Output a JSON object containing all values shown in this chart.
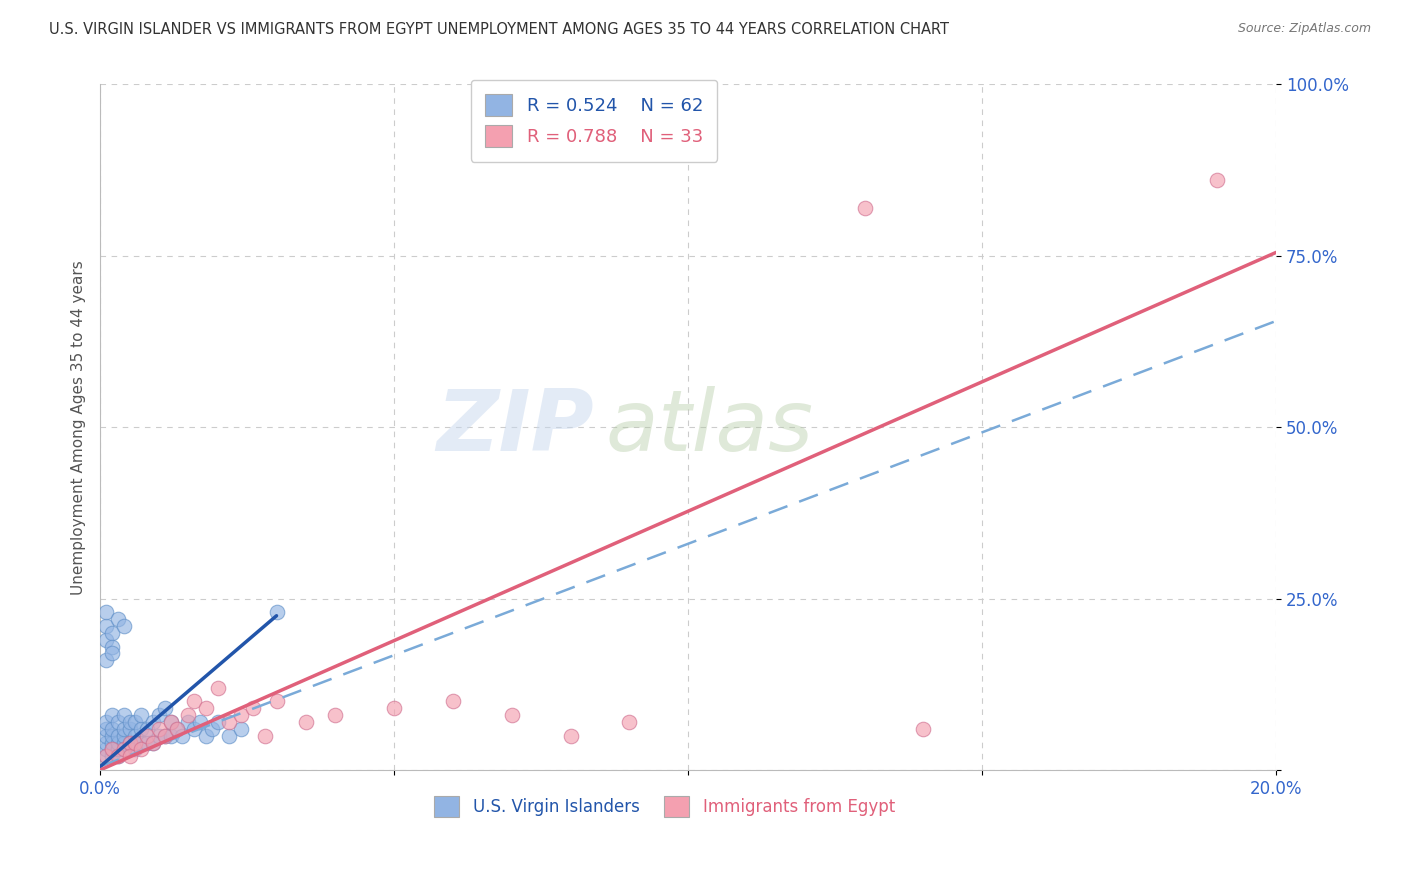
{
  "title": "U.S. VIRGIN ISLANDER VS IMMIGRANTS FROM EGYPT UNEMPLOYMENT AMONG AGES 35 TO 44 YEARS CORRELATION CHART",
  "source": "Source: ZipAtlas.com",
  "xlabel": "",
  "ylabel": "Unemployment Among Ages 35 to 44 years",
  "xlim": [
    0.0,
    0.2
  ],
  "ylim": [
    0.0,
    1.0
  ],
  "xticks": [
    0.0,
    0.05,
    0.1,
    0.15,
    0.2
  ],
  "xtick_labels": [
    "0.0%",
    "",
    "",
    "",
    "20.0%"
  ],
  "yticks": [
    0.0,
    0.25,
    0.5,
    0.75,
    1.0
  ],
  "ytick_labels": [
    "",
    "25.0%",
    "50.0%",
    "75.0%",
    "100.0%"
  ],
  "series1_label": "U.S. Virgin Islanders",
  "series1_color": "#92b4e3",
  "series1_border": "#6090c8",
  "series1_R": 0.524,
  "series1_N": 62,
  "series2_label": "Immigrants from Egypt",
  "series2_color": "#f4a0b0",
  "series2_border": "#d07090",
  "series2_R": 0.788,
  "series2_N": 33,
  "watermark_zip": "ZIP",
  "watermark_atlas": "atlas",
  "blue_trend_x": [
    0.0,
    0.03
  ],
  "blue_trend_y": [
    0.005,
    0.225
  ],
  "dashed_trend_x": [
    0.0,
    0.2
  ],
  "dashed_trend_y": [
    0.005,
    0.655
  ],
  "pink_trend_x": [
    0.0,
    0.2
  ],
  "pink_trend_y": [
    0.0,
    0.755
  ],
  "scatter1_x": [
    0.001,
    0.001,
    0.001,
    0.001,
    0.001,
    0.001,
    0.002,
    0.002,
    0.002,
    0.002,
    0.002,
    0.002,
    0.003,
    0.003,
    0.003,
    0.003,
    0.003,
    0.004,
    0.004,
    0.004,
    0.004,
    0.004,
    0.005,
    0.005,
    0.005,
    0.005,
    0.006,
    0.006,
    0.006,
    0.007,
    0.007,
    0.007,
    0.008,
    0.008,
    0.009,
    0.009,
    0.01,
    0.01,
    0.011,
    0.011,
    0.012,
    0.012,
    0.013,
    0.014,
    0.015,
    0.016,
    0.017,
    0.018,
    0.019,
    0.02,
    0.022,
    0.024,
    0.001,
    0.001,
    0.001,
    0.002,
    0.002,
    0.003,
    0.004,
    0.03,
    0.001,
    0.002
  ],
  "scatter1_y": [
    0.02,
    0.03,
    0.04,
    0.05,
    0.06,
    0.07,
    0.02,
    0.03,
    0.04,
    0.05,
    0.06,
    0.08,
    0.02,
    0.03,
    0.04,
    0.05,
    0.07,
    0.03,
    0.04,
    0.05,
    0.06,
    0.08,
    0.03,
    0.04,
    0.06,
    0.07,
    0.03,
    0.05,
    0.07,
    0.04,
    0.06,
    0.08,
    0.04,
    0.06,
    0.04,
    0.07,
    0.05,
    0.08,
    0.05,
    0.09,
    0.05,
    0.07,
    0.06,
    0.05,
    0.07,
    0.06,
    0.07,
    0.05,
    0.06,
    0.07,
    0.05,
    0.06,
    0.19,
    0.21,
    0.23,
    0.2,
    0.18,
    0.22,
    0.21,
    0.23,
    0.16,
    0.17
  ],
  "scatter2_x": [
    0.001,
    0.002,
    0.003,
    0.004,
    0.005,
    0.005,
    0.006,
    0.007,
    0.008,
    0.009,
    0.01,
    0.011,
    0.012,
    0.013,
    0.015,
    0.016,
    0.018,
    0.02,
    0.022,
    0.024,
    0.026,
    0.028,
    0.03,
    0.035,
    0.04,
    0.05,
    0.06,
    0.07,
    0.08,
    0.09,
    0.13,
    0.19,
    0.14
  ],
  "scatter2_y": [
    0.02,
    0.03,
    0.02,
    0.03,
    0.04,
    0.02,
    0.04,
    0.03,
    0.05,
    0.04,
    0.06,
    0.05,
    0.07,
    0.06,
    0.08,
    0.1,
    0.09,
    0.12,
    0.07,
    0.08,
    0.09,
    0.05,
    0.1,
    0.07,
    0.08,
    0.09,
    0.1,
    0.08,
    0.05,
    0.07,
    0.82,
    0.86,
    0.06
  ]
}
